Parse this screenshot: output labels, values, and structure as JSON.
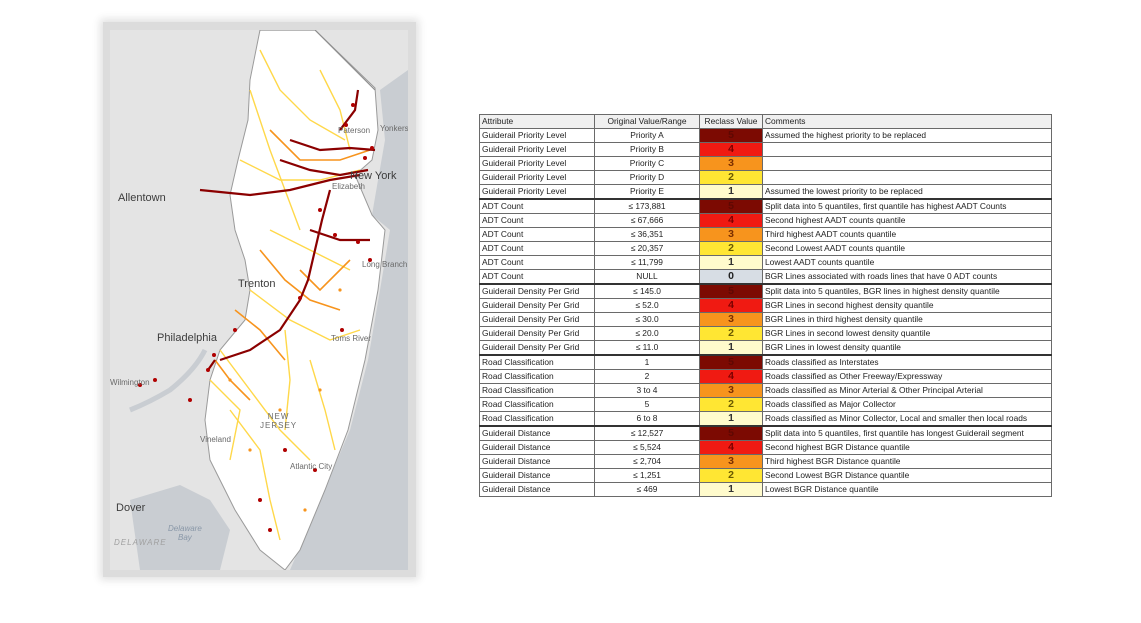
{
  "map": {
    "labels": {
      "allentown": "Allentown",
      "new_york": "New York",
      "yonkers": "Yonkers",
      "paterson": "Paterson",
      "elizabeth": "Elizabeth",
      "long_branch": "Long Branch",
      "trenton": "Trenton",
      "philadelphia": "Philadelphia",
      "toms_river": "Toms River",
      "wilmington": "Wilmington",
      "new_jersey": "NEW\nJERSEY",
      "vineland": "Vineland",
      "atlantic_city": "Atlantic City",
      "dover": "Dover",
      "delaware_bay": "Delaware\nBay",
      "delaware": "DELAWARE"
    },
    "colors": {
      "land": "#e4e4e4",
      "water": "#c9cdd2",
      "road_high": "#8b0000",
      "road_mid": "#f7941d",
      "road_low": "#ffd84a"
    }
  },
  "table": {
    "headers": [
      "Attribute",
      "Original Value/Range",
      "Reclass Value",
      "Comments"
    ],
    "rows": [
      {
        "attr": "Guiderail Priority Level",
        "orig": "Priority A",
        "val": "5",
        "comment": "Assumed the highest priority to be replaced",
        "group": true
      },
      {
        "attr": "Guiderail Priority Level",
        "orig": "Priority B",
        "val": "4",
        "comment": ""
      },
      {
        "attr": "Guiderail Priority Level",
        "orig": "Priority C",
        "val": "3",
        "comment": ""
      },
      {
        "attr": "Guiderail Priority Level",
        "orig": "Priority D",
        "val": "2",
        "comment": ""
      },
      {
        "attr": "Guiderail Priority Level",
        "orig": "Priority E",
        "val": "1",
        "comment": "Assumed the lowest priority to be replaced"
      },
      {
        "attr": "ADT Count",
        "orig": "≤ 173,881",
        "val": "5",
        "comment": "Split data into 5 quantiles, first quantile has highest AADT Counts",
        "group": true
      },
      {
        "attr": "ADT Count",
        "orig": "≤ 67,666",
        "val": "4",
        "comment": "Second highest  AADT counts quantile"
      },
      {
        "attr": "ADT Count",
        "orig": "≤ 36,351",
        "val": "3",
        "comment": "Third highest AADT counts quantile"
      },
      {
        "attr": "ADT Count",
        "orig": "≤ 20,357",
        "val": "2",
        "comment": "Second Lowest AADT counts quantile"
      },
      {
        "attr": "ADT Count",
        "orig": "≤ 11,799",
        "val": "1",
        "comment": "Lowest AADT counts quantile"
      },
      {
        "attr": "ADT Count",
        "orig": "NULL",
        "val": "0",
        "comment": "BGR Lines associated with roads lines that have 0 ADT counts"
      },
      {
        "attr": "Guiderail Density Per Grid",
        "orig": "≤ 145.0",
        "val": "5",
        "comment": "Split data into 5 quantiles, BGR lines in highest density quantile",
        "group": true
      },
      {
        "attr": "Guiderail Density Per Grid",
        "orig": "≤ 52.0",
        "val": "4",
        "comment": "BGR Lines in second highest density quantile"
      },
      {
        "attr": "Guiderail Density Per Grid",
        "orig": "≤ 30.0",
        "val": "3",
        "comment": "BGR Lines in third highest density quantile"
      },
      {
        "attr": "Guiderail Density Per Grid",
        "orig": "≤ 20.0",
        "val": "2",
        "comment": "BGR Lines in second lowest density quantile"
      },
      {
        "attr": "Guiderail Density Per Grid",
        "orig": "≤ 11.0",
        "val": "1",
        "comment": "BGR Lines in lowest density quantile"
      },
      {
        "attr": "Road Classification",
        "orig": "1",
        "val": "5",
        "comment": "Roads classified as Interstates",
        "group": true
      },
      {
        "attr": "Road Classification",
        "orig": "2",
        "val": "4",
        "comment": "Roads classified as Other Freeway/Expressway"
      },
      {
        "attr": "Road Classification",
        "orig": "3 to 4",
        "val": "3",
        "comment": "Roads classified as Minor Arterial & Other Principal Arterial"
      },
      {
        "attr": "Road Classification",
        "orig": "5",
        "val": "2",
        "comment": "Roads classified as Major Collector"
      },
      {
        "attr": "Road Classification",
        "orig": "6 to 8",
        "val": "1",
        "comment": "Roads classified as Minor Collector, Local and smaller then local roads"
      },
      {
        "attr": "Guiderail Distance",
        "orig": "≤ 12,527",
        "val": "5",
        "comment": "Split data into 5 quantiles, first quantile has longest Guiderail segment",
        "group": true
      },
      {
        "attr": "Guiderail Distance",
        "orig": "≤ 5,524",
        "val": "4",
        "comment": "Second highest BGR Distance quantile"
      },
      {
        "attr": "Guiderail Distance",
        "orig": "≤ 2,704",
        "val": "3",
        "comment": "Third highest BGR Distance quantile"
      },
      {
        "attr": "Guiderail Distance",
        "orig": "≤ 1,251",
        "val": "2",
        "comment": "Second Lowest BGR Distance quantile"
      },
      {
        "attr": "Guiderail Distance",
        "orig": "≤ 469",
        "val": "1",
        "comment": "Lowest BGR Distance quantile"
      }
    ],
    "value_colors": {
      "5": "#7c0a02",
      "4": "#f01a12",
      "3": "#f7941d",
      "2": "#ffe633",
      "1": "#fffbcc",
      "0": "#d7dde4"
    }
  }
}
